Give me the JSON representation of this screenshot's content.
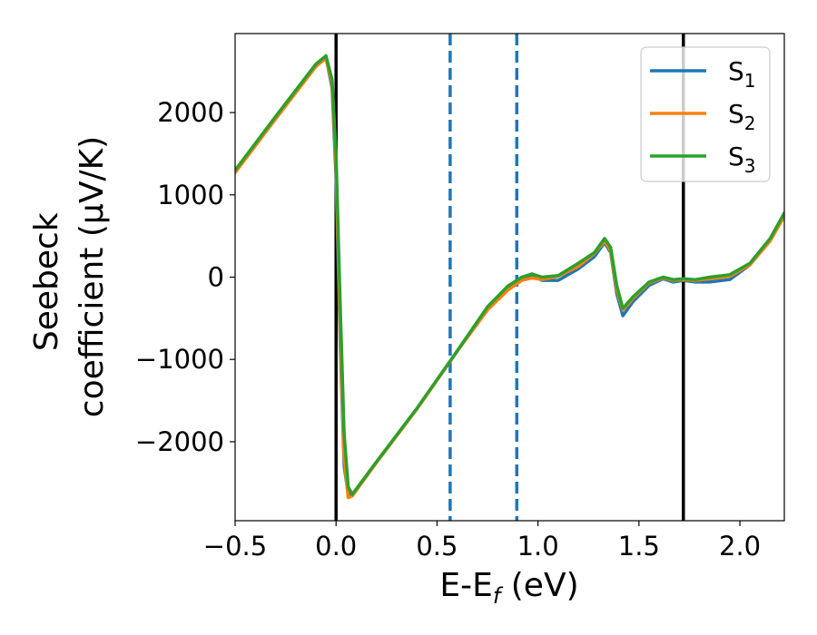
{
  "chart_data": {
    "type": "line",
    "xlabel": "E-E",
    "xlabel_sub": "f",
    "xlabel_unit": " (eV)",
    "ylabel_line1": "Seebeck",
    "ylabel_line2": "coefficient  (μV/K)",
    "xlim": [
      -0.5,
      2.22
    ],
    "ylim": [
      -2960,
      2960
    ],
    "xticks": [
      -0.5,
      0.0,
      0.5,
      1.0,
      1.5,
      2.0
    ],
    "xtick_labels": [
      "−0.5",
      "0.0",
      "0.5",
      "1.0",
      "1.5",
      "2.0"
    ],
    "yticks": [
      -2000,
      -1000,
      0,
      1000,
      2000
    ],
    "ytick_labels": [
      "−2000",
      "−1000",
      "0",
      "1000",
      "2000"
    ],
    "grid": false,
    "legend_position": "top-right",
    "vlines": [
      {
        "x": 0.0,
        "style": "solid",
        "color": "#000000"
      },
      {
        "x": 1.72,
        "style": "solid",
        "color": "#000000"
      },
      {
        "x": 0.565,
        "style": "dashed",
        "color": "#1f77b4"
      },
      {
        "x": 0.895,
        "style": "dashed",
        "color": "#1f77b4"
      }
    ],
    "series": [
      {
        "name": "S",
        "sub": "1",
        "color": "#1f77b4",
        "x": [
          -0.5,
          -0.3,
          -0.1,
          -0.05,
          -0.02,
          0.0,
          0.02,
          0.04,
          0.06,
          0.08,
          0.2,
          0.4,
          0.6,
          0.75,
          0.85,
          0.92,
          0.97,
          1.02,
          1.1,
          1.2,
          1.28,
          1.33,
          1.36,
          1.39,
          1.42,
          1.47,
          1.55,
          1.62,
          1.67,
          1.72,
          1.78,
          1.85,
          1.95,
          2.05,
          2.15,
          2.22
        ],
        "y": [
          1280,
          1930,
          2570,
          2670,
          2300,
          1200,
          -800,
          -2300,
          -2640,
          -2650,
          -2250,
          -1600,
          -900,
          -380,
          -140,
          -30,
          20,
          -40,
          -40,
          100,
          250,
          420,
          300,
          -200,
          -470,
          -300,
          -100,
          -20,
          -60,
          -40,
          -60,
          -60,
          -30,
          150,
          450,
          760
        ]
      },
      {
        "name": "S",
        "sub": "2",
        "color": "#ff7f0e",
        "x": [
          -0.5,
          -0.3,
          -0.1,
          -0.05,
          -0.02,
          0.0,
          0.02,
          0.04,
          0.06,
          0.08,
          0.2,
          0.4,
          0.6,
          0.75,
          0.85,
          0.92,
          0.97,
          1.02,
          1.1,
          1.2,
          1.28,
          1.33,
          1.36,
          1.39,
          1.42,
          1.47,
          1.55,
          1.62,
          1.67,
          1.72,
          1.78,
          1.85,
          1.95,
          2.05,
          2.15,
          2.22
        ],
        "y": [
          1270,
          1920,
          2560,
          2660,
          2350,
          1350,
          -600,
          -2200,
          -2680,
          -2660,
          -2255,
          -1605,
          -900,
          -400,
          -160,
          -40,
          -10,
          -30,
          10,
          130,
          290,
          440,
          320,
          -150,
          -400,
          -260,
          -70,
          -10,
          -40,
          -30,
          -40,
          -20,
          10,
          150,
          440,
          740
        ]
      },
      {
        "name": "S",
        "sub": "3",
        "color": "#2ca02c",
        "x": [
          -0.5,
          -0.3,
          -0.1,
          -0.05,
          -0.02,
          0.0,
          0.02,
          0.04,
          0.06,
          0.08,
          0.2,
          0.4,
          0.6,
          0.75,
          0.85,
          0.92,
          0.97,
          1.02,
          1.1,
          1.2,
          1.28,
          1.33,
          1.36,
          1.39,
          1.42,
          1.47,
          1.55,
          1.62,
          1.67,
          1.72,
          1.78,
          1.85,
          1.95,
          2.05,
          2.15,
          2.22
        ],
        "y": [
          1300,
          1950,
          2590,
          2690,
          2400,
          1500,
          -300,
          -1900,
          -2550,
          -2640,
          -2245,
          -1595,
          -895,
          -360,
          -110,
          0,
          40,
          0,
          20,
          170,
          300,
          470,
          360,
          -100,
          -380,
          -240,
          -60,
          0,
          -30,
          -20,
          -30,
          0,
          30,
          170,
          470,
          780
        ]
      }
    ]
  }
}
